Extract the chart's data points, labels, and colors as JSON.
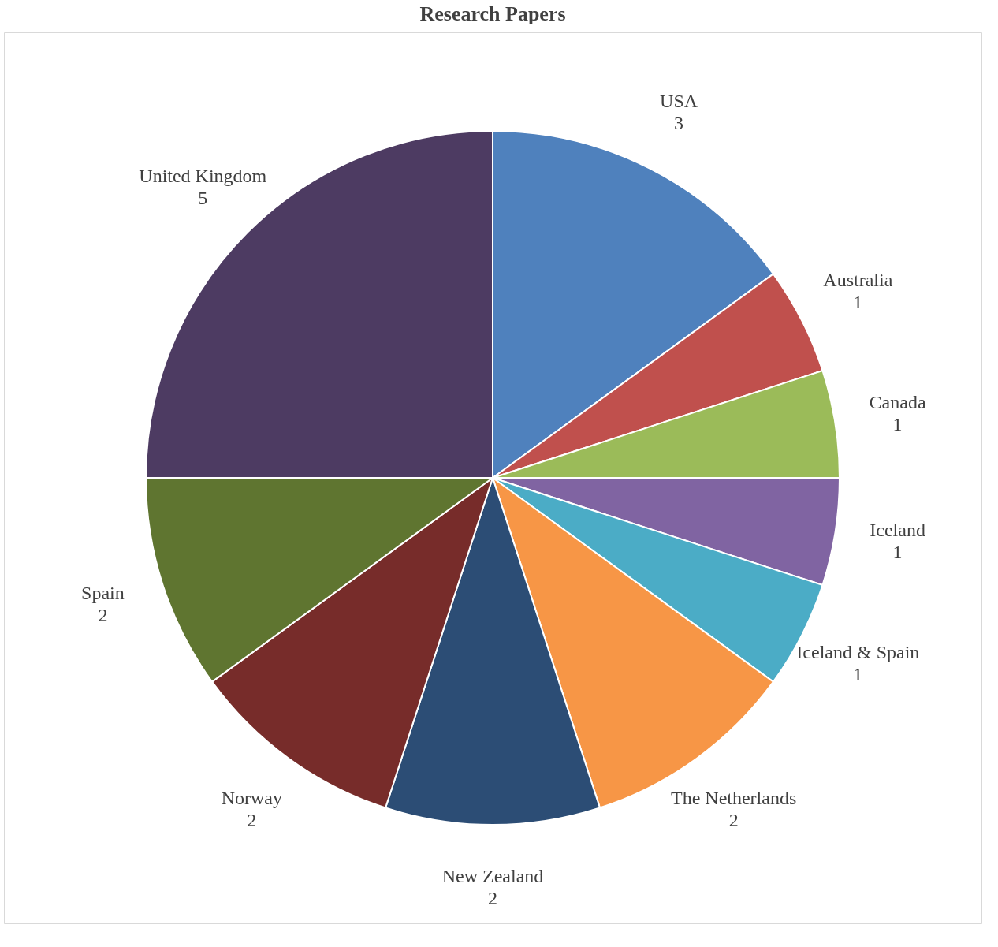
{
  "chart_data": {
    "type": "pie",
    "title": "Research Papers",
    "categories": [
      "USA",
      "Australia",
      "Canada",
      "Iceland",
      "Iceland & Spain",
      "The Netherlands",
      "New Zealand",
      "Norway",
      "Spain",
      "United Kingdom"
    ],
    "values": [
      3,
      1,
      1,
      1,
      1,
      2,
      2,
      2,
      2,
      5
    ],
    "colors": [
      "#4f81bd",
      "#c0504d",
      "#9bbb59",
      "#8064a2",
      "#4bacc6",
      "#f79646",
      "#2c4d75",
      "#772c2a",
      "#5f7530",
      "#4d3b62"
    ],
    "data_labels": true,
    "legend": false
  }
}
